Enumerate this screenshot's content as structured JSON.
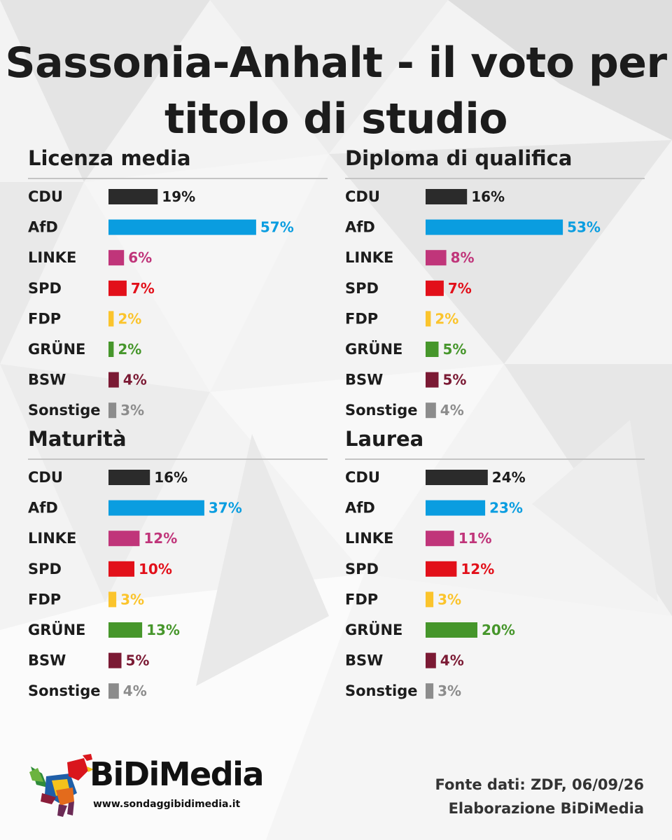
{
  "title": "Sassonia-Anhalt - il voto per titolo di studio",
  "colors": {
    "CDU": "#2b2b2b",
    "AfD": "#0a9de0",
    "LINKE": "#c0357a",
    "SPD": "#e2101a",
    "FDP": "#fbc42c",
    "GRÜNE": "#46962b",
    "BSW": "#7b1a34",
    "Sonstige": "#8c8c8c"
  },
  "chart_data": [
    {
      "type": "bar",
      "orientation": "horizontal",
      "title": "Licenza media",
      "categories": [
        "CDU",
        "AfD",
        "LINKE",
        "SPD",
        "FDP",
        "GRÜNE",
        "BSW",
        "Sonstige"
      ],
      "values": [
        19,
        57,
        6,
        7,
        2,
        2,
        4,
        3
      ],
      "labels": [
        "19%",
        "57%",
        "6%",
        "7%",
        "2%",
        "2%",
        "4%",
        "3%"
      ]
    },
    {
      "type": "bar",
      "orientation": "horizontal",
      "title": "Diploma di qualifica",
      "categories": [
        "CDU",
        "AfD",
        "LINKE",
        "SPD",
        "FDP",
        "GRÜNE",
        "BSW",
        "Sonstige"
      ],
      "values": [
        16,
        53,
        8,
        7,
        2,
        5,
        5,
        4
      ],
      "labels": [
        "16%",
        "53%",
        "8%",
        "7%",
        "2%",
        "5%",
        "5%",
        "4%"
      ]
    },
    {
      "type": "bar",
      "orientation": "horizontal",
      "title": "Maturità",
      "categories": [
        "CDU",
        "AfD",
        "LINKE",
        "SPD",
        "FDP",
        "GRÜNE",
        "BSW",
        "Sonstige"
      ],
      "values": [
        16,
        37,
        12,
        10,
        3,
        13,
        5,
        4
      ],
      "labels": [
        "16%",
        "37%",
        "12%",
        "10%",
        "3%",
        "13%",
        "5%",
        "4%"
      ]
    },
    {
      "type": "bar",
      "orientation": "horizontal",
      "title": "Laurea",
      "categories": [
        "CDU",
        "AfD",
        "LINKE",
        "SPD",
        "FDP",
        "GRÜNE",
        "BSW",
        "Sonstige"
      ],
      "values": [
        24,
        23,
        11,
        12,
        3,
        20,
        4,
        3
      ],
      "labels": [
        "24%",
        "23%",
        "11%",
        "12%",
        "3%",
        "20%",
        "4%",
        "3%"
      ]
    }
  ],
  "footer": {
    "brand": "BiDiMedia",
    "website": "www.sondaggibidimedia.it",
    "source_line1": "Fonte dati: ZDF, 06/09/26",
    "source_line2": "Elaborazione BiDiMedia"
  }
}
